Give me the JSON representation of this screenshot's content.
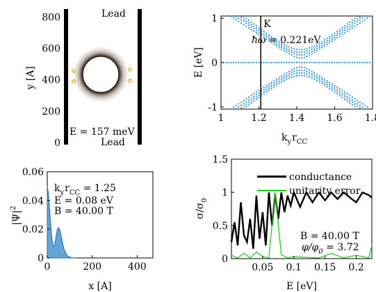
{
  "chart_data": [
    {
      "type": "heatmap",
      "ylabel": "y [A]",
      "ylim": [
        0,
        850
      ],
      "yticks": [
        "0",
        "200",
        "400",
        "600",
        "800"
      ],
      "annotations": {
        "lead_top": "Lead",
        "lead_bottom": "Lead",
        "energy": "E = 157 meV"
      },
      "colors": {
        "density": "#5a4a3c",
        "contacts": "#e2a52a"
      }
    },
    {
      "type": "scatter",
      "xlabel_main": "k",
      "xlabel_sub1": "y",
      "xlabel_rest": "r",
      "xlabel_sub2": "CC",
      "ylabel": "E [eV]",
      "xlim": [
        1.0,
        1.8
      ],
      "ylim": [
        -1.05,
        1.05
      ],
      "xticks": [
        "1",
        "1.2",
        "1.4",
        "1.6",
        "1.8"
      ],
      "yticks": [
        "-1",
        "0",
        "1"
      ],
      "k_marker": {
        "x": 1.21,
        "label": "K"
      },
      "hw_main": "ħω",
      "hw_value": " = 0.221eV",
      "series": {
        "x": [
          1.0,
          1.05,
          1.1,
          1.15,
          1.2,
          1.25,
          1.3,
          1.35,
          1.4,
          1.45,
          1.5,
          1.55,
          1.6,
          1.65,
          1.7,
          1.75,
          1.8
        ],
        "bands": [
          0.0,
          0.1,
          0.17,
          0.23,
          0.29,
          -0.1,
          -0.17,
          -0.23,
          -0.29
        ]
      },
      "color": "#2f8fc8"
    },
    {
      "type": "area",
      "xlabel": "x [A]",
      "ylabel_main": "|Ψ|",
      "ylabel_sup": "2",
      "xlim": [
        0,
        470
      ],
      "ylim": [
        0,
        0.06
      ],
      "xticks": [
        "0",
        "200",
        "400"
      ],
      "yticks": [
        "0",
        "0.02",
        "0.04",
        "0.06"
      ],
      "ann_k_main": "k",
      "ann_k_sub": "y",
      "ann_k_mid": "r",
      "ann_k_sub2": "CC",
      "ann_k_val": " = 1.25",
      "ann_e": "E = 0.08 eV",
      "ann_b": "B = 40.00 T",
      "x": [
        0,
        5,
        10,
        15,
        20,
        25,
        30,
        35,
        40,
        45,
        50,
        55,
        60,
        65,
        70,
        75,
        80,
        85,
        90,
        100,
        110,
        120,
        130
      ],
      "y": [
        0.05,
        0.045,
        0.035,
        0.024,
        0.015,
        0.009,
        0.008,
        0.011,
        0.016,
        0.02,
        0.021,
        0.02,
        0.017,
        0.013,
        0.009,
        0.006,
        0.004,
        0.0025,
        0.0015,
        0.0006,
        0.0002,
        0.0001,
        0.0
      ],
      "color": "#2f87c6"
    },
    {
      "type": "line",
      "xlabel": "E [eV]",
      "ylabel_main": "σ/σ",
      "ylabel_sub": "0",
      "xlim": [
        0.0,
        0.225
      ],
      "ylim": [
        0,
        1.5
      ],
      "xticks": [
        "0.05",
        "0.1",
        "0.15",
        "0.2"
      ],
      "yticks": [
        "0",
        "0.5",
        "1",
        "1.5"
      ],
      "legend": {
        "conductance": "conductance",
        "unitarity": "unitarity error",
        "placement": "top-right"
      },
      "ann_b": "B = 40.00 T",
      "ann_phi_main": "φ/φ",
      "ann_phi_sub": "0",
      "ann_phi_val": " = 3.72",
      "series": [
        {
          "name": "conductance",
          "color": "#000000",
          "x": [
            0.0,
            0.005,
            0.01,
            0.015,
            0.02,
            0.025,
            0.03,
            0.035,
            0.04,
            0.045,
            0.05,
            0.055,
            0.06,
            0.065,
            0.07,
            0.075,
            0.08,
            0.085,
            0.09,
            0.095,
            0.1,
            0.11,
            0.12,
            0.13,
            0.14,
            0.15,
            0.16,
            0.17,
            0.18,
            0.19,
            0.2,
            0.21,
            0.22,
            0.225
          ],
          "y": [
            0.25,
            0.55,
            0.2,
            0.85,
            0.35,
            0.25,
            0.6,
            0.15,
            0.95,
            0.3,
            0.7,
            0.2,
            1.0,
            0.5,
            0.98,
            0.6,
            1.0,
            0.7,
            0.95,
            0.8,
            1.0,
            0.78,
            1.0,
            0.85,
            1.0,
            0.88,
            1.0,
            0.9,
            1.0,
            0.92,
            0.85,
            1.0,
            0.96,
            0.92
          ]
        },
        {
          "name": "unitarity error",
          "color": "#22cc22",
          "x": [
            0.0,
            0.01,
            0.02,
            0.03,
            0.04,
            0.05,
            0.06,
            0.07,
            0.08,
            0.09,
            0.1,
            0.12,
            0.14,
            0.16,
            0.18,
            0.2,
            0.22,
            0.225
          ],
          "y": [
            0.05,
            0.01,
            0.08,
            0.01,
            0.1,
            0.03,
            0.01,
            1.0,
            0.06,
            0.01,
            0.03,
            0.02,
            0.01,
            0.08,
            0.01,
            0.05,
            0.01,
            0.2
          ]
        }
      ]
    }
  ]
}
